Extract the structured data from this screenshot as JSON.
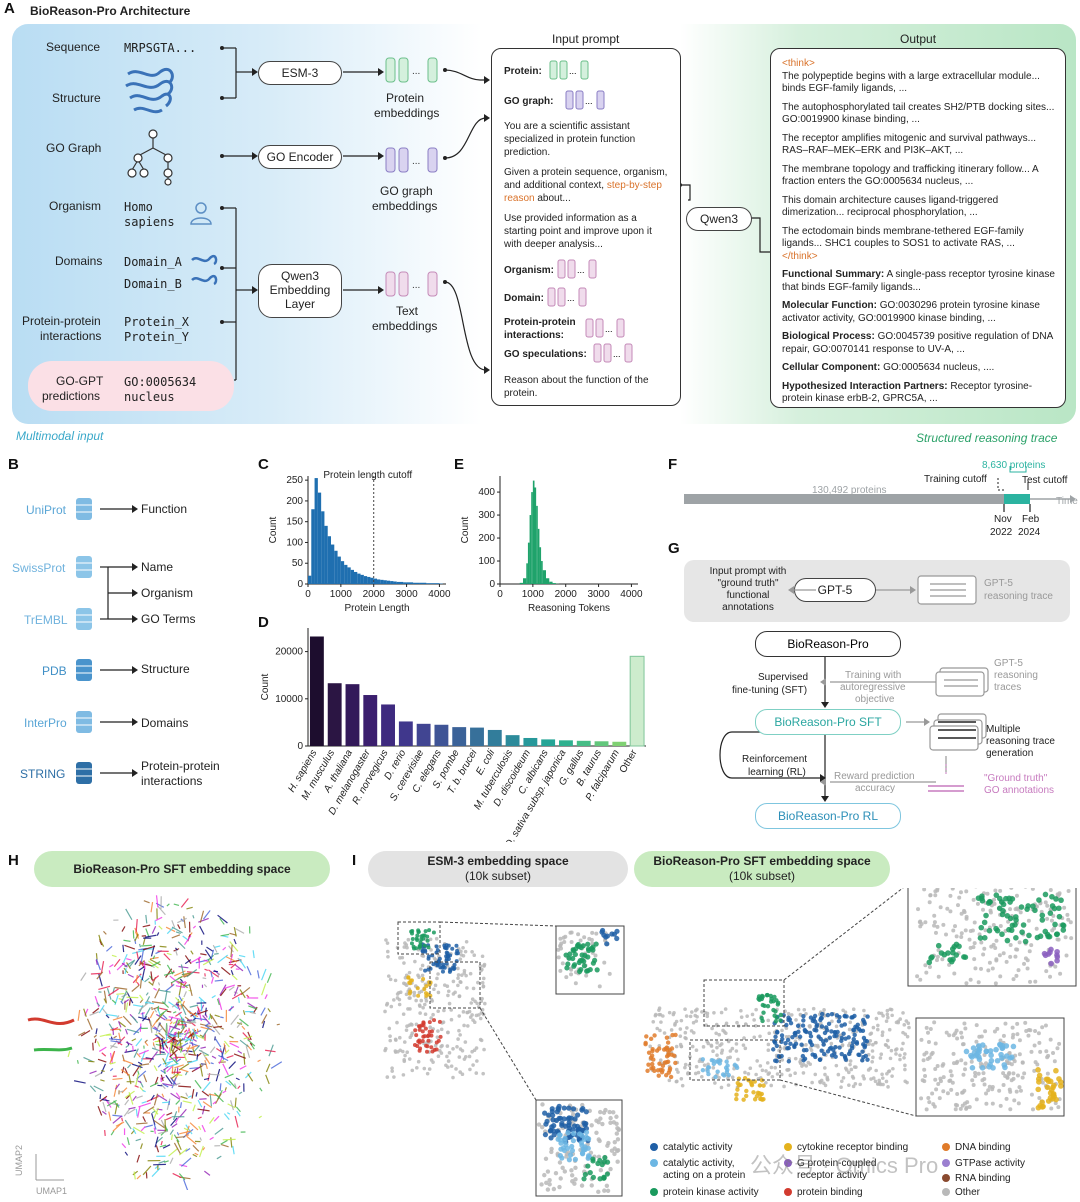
{
  "panelA": {
    "letter": "A",
    "title": "BioReason-Pro Architecture",
    "rows": {
      "sequence": {
        "label": "Sequence",
        "value": "MRPSGTA..."
      },
      "structure": {
        "label": "Structure"
      },
      "go_graph": {
        "label": "GO Graph"
      },
      "organism": {
        "label": "Organism",
        "value1": "Homo",
        "value2": "sapiens"
      },
      "domains": {
        "label": "Domains",
        "value1": "Domain_A",
        "value2": "Domain_B"
      },
      "ppi": {
        "label1": "Protein-protein",
        "label2": "interactions",
        "value1": "Protein_X",
        "value2": "Protein_Y"
      },
      "gogpt": {
        "label1": "GO-GPT",
        "label2": "predictions",
        "value1": "GO:0005634",
        "value2": "nucleus"
      }
    },
    "encoders": {
      "esm3": "ESM-3",
      "go_encoder": "GO Encoder",
      "qwen_embed1": "Qwen3",
      "qwen_embed2": "Embedding",
      "qwen_embed3": "Layer"
    },
    "embeddings": {
      "protein1": "Protein",
      "protein2": "embeddings",
      "go1": "GO graph",
      "go2": "embeddings",
      "text1": "Text",
      "text2": "embeddings"
    },
    "input_prompt": {
      "title": "Input prompt",
      "protein": "Protein:",
      "go_graph": "GO graph:",
      "p1": "You are a scientific assistant specialized in protein function prediction.",
      "p2a": "Given a protein sequence, organism, and additional context,",
      "p2b": "step-by-step reason",
      "p2c": "about...",
      "p3": "Use provided information as a starting point and improve upon it with deeper analysis...",
      "organism": "Organism:",
      "domain": "Domain:",
      "ppi1": "Protein-protein",
      "ppi2": "interactions:",
      "gospec": "GO speculations:",
      "p4": "Reason about the function of the protein."
    },
    "qwen3": "Qwen3",
    "output": {
      "title": "Output",
      "think_open": "<think>",
      "s1": "The polypeptide begins with a large extracellular module... binds EGF-family ligands, ...",
      "s2": "The autophosphorylated tail creates SH2/PTB docking sites... GO:0019900 kinase binding, ...",
      "s3": "The receptor amplifies mitogenic and survival pathways... RAS–RAF–MEK–ERK and PI3K–AKT, ...",
      "s4": "The membrane topology and trafficking itinerary follow... A fraction enters the GO:0005634 nucleus, ...",
      "s5": "This domain architecture causes ligand-triggered dimerization... reciprocal phosphorylation, ...",
      "s6": "The ectodomain binds membrane-tethered EGF-family ligands... SHC1 couples to SOS1 to activate RAS, ...",
      "think_close": "</think>",
      "fs_label": "Functional Summary:",
      "fs": "A single-pass receptor tyrosine kinase that binds EGF-family ligands...",
      "mf_label": "Molecular Function:",
      "mf": "GO:0030296 protein tyrosine kinase activator activity, GO:0019900 kinase binding, ...",
      "bp_label": "Biological Process:",
      "bp": "GO:0045739 positive regulation of DNA repair, GO:0070141 response to UV-A, ...",
      "cc_label": "Cellular Component:",
      "cc": "GO:0005634 nucleus, ....",
      "hip_label": "Hypothesized Interaction Partners:",
      "hip": "Receptor tyrosine-protein kinase erbB-2, GPRC5A, ..."
    },
    "multimodal": "Multimodal input",
    "structured": "Structured reasoning trace"
  },
  "panelB": {
    "letter": "B",
    "sources": [
      {
        "name": "UniProt",
        "color": "#5aa6d6",
        "targets": [
          "Function"
        ]
      },
      {
        "name": "SwissProt",
        "color": "#6fb2dd"
      },
      {
        "name": "TrEMBL",
        "color": "#6fb2dd"
      },
      {
        "name": "PDB",
        "color": "#3f8fc6"
      },
      {
        "name": "InterPro",
        "color": "#5aa6d6"
      },
      {
        "name": "STRING",
        "color": "#2e6fa6"
      }
    ],
    "targets": {
      "function": "Function",
      "name": "Name",
      "organism": "Organism",
      "goterms": "GO Terms",
      "structure": "Structure",
      "domains": "Domains",
      "ppi1": "Protein-protein",
      "ppi2": "interactions"
    }
  },
  "panelC": {
    "letter": "C",
    "chart_data": {
      "type": "bar",
      "title": "Protein length cutoff",
      "xlabel": "Protein Length",
      "ylabel": "Count",
      "xlim": [
        0,
        4200
      ],
      "ylim": [
        0,
        260
      ],
      "xticks": [
        0,
        1000,
        2000,
        3000,
        4000
      ],
      "yticks": [
        0,
        50,
        100,
        150,
        200,
        250
      ],
      "cutoff": 2000,
      "color": "#1f6fb0",
      "x": [
        0,
        100,
        200,
        300,
        400,
        500,
        600,
        700,
        800,
        900,
        1000,
        1100,
        1200,
        1300,
        1400,
        1500,
        1600,
        1700,
        1800,
        1900,
        2000,
        2100,
        2200,
        2300,
        2400,
        2500,
        2600,
        2700,
        2800,
        2900,
        3000,
        3200,
        3400,
        3600,
        3800,
        4000
      ],
      "values": [
        20,
        180,
        255,
        220,
        175,
        140,
        115,
        95,
        80,
        66,
        55,
        46,
        40,
        34,
        29,
        25,
        22,
        19,
        17,
        15,
        13,
        11,
        10,
        9,
        8,
        7,
        6,
        5,
        5,
        4,
        4,
        3,
        3,
        2,
        2,
        1
      ]
    }
  },
  "panelD": {
    "letter": "D",
    "chart_data": {
      "type": "bar",
      "ylabel": "Count",
      "ylim": [
        0,
        25000
      ],
      "yticks": [
        0,
        10000,
        20000
      ],
      "categories": [
        "H. sapiens",
        "M. musculus",
        "A. thaliana",
        "D. melanogaster",
        "R. norvegicus",
        "D. rerio",
        "S. cerevisiae",
        "C. elegans",
        "S. pombe",
        "T. b. brucei",
        "E. coli",
        "M. tuberculosis",
        "D. discoideum",
        "C. albicans",
        "O. sativa subsp. japonica",
        "G. gallus",
        "B. taurus",
        "P. falciparum",
        "Other"
      ],
      "values": [
        23200,
        13300,
        13100,
        10800,
        8800,
        5200,
        4700,
        4500,
        4000,
        3900,
        3400,
        2300,
        1700,
        1400,
        1200,
        1100,
        1000,
        900,
        19000
      ],
      "colors": [
        "#1d0d2e",
        "#2b1543",
        "#33195a",
        "#3b1f6e",
        "#3e2a7f",
        "#40378c",
        "#414592",
        "#3f5496",
        "#3b6298",
        "#37709a",
        "#327d9b",
        "#2c8b9b",
        "#27989a",
        "#25a596",
        "#2fb18f",
        "#46bd86",
        "#62c77c",
        "#80d173",
        "#cdeccd"
      ]
    }
  },
  "panelE": {
    "letter": "E",
    "chart_data": {
      "type": "bar",
      "xlabel": "Reasoning Tokens",
      "ylabel": "Count",
      "xlim": [
        0,
        4200
      ],
      "ylim": [
        0,
        470
      ],
      "xticks": [
        0,
        1000,
        2000,
        3000,
        4000
      ],
      "yticks": [
        0,
        100,
        200,
        300,
        400
      ],
      "color": "#1fa36b",
      "x": [
        600,
        700,
        800,
        850,
        900,
        950,
        1000,
        1050,
        1100,
        1150,
        1200,
        1250,
        1300,
        1400,
        1500,
        1600,
        1700
      ],
      "values": [
        5,
        25,
        90,
        180,
        300,
        400,
        450,
        420,
        340,
        240,
        160,
        100,
        60,
        25,
        10,
        4,
        1
      ]
    }
  },
  "panelF": {
    "letter": "F",
    "proteins_old": "130,492 proteins",
    "proteins_new": "8,630 proteins",
    "training_cutoff": "Training cutoff",
    "test_cutoff": "Test cutoff",
    "time": "Time",
    "d1a": "Nov",
    "d1b": "2022",
    "d2a": "Feb",
    "d2b": "2024"
  },
  "panelG": {
    "letter": "G",
    "input1": "Input prompt with",
    "input2": "\"ground truth\"",
    "input3": "functional",
    "input4": "annotations",
    "gpt5": "GPT-5",
    "gpt5_trace1": "GPT-5",
    "gpt5_trace2": "reasoning trace",
    "bioreason": "BioReason-Pro",
    "sft_label1": "Supervised",
    "sft_label2": "fine-tuning (SFT)",
    "training1": "Training with",
    "training2": "autoregressive",
    "training3": "objective",
    "gpt5_traces1": "GPT-5",
    "gpt5_traces2": "reasoning",
    "gpt5_traces3": "traces",
    "sft_model": "BioReason-Pro SFT",
    "rl1": "Reinforcement",
    "rl2": "learning (RL)",
    "multi1": "Multiple",
    "multi2": "reasoning trace",
    "multi3": "generation",
    "reward1": "Reward prediction",
    "reward2": "accuracy",
    "gt1": "\"Ground truth\"",
    "gt2": "GO annotations",
    "rl_model": "BioReason-Pro RL"
  },
  "panelH": {
    "letter": "H",
    "title": "BioReason-Pro SFT embedding space",
    "umap1": "UMAP1",
    "umap2": "UMAP2"
  },
  "panelI": {
    "letter": "I",
    "esm_title1": "ESM-3 embedding space",
    "esm_title2": "(10k subset)",
    "sft_title1": "BioReason-Pro SFT embedding space",
    "sft_title2": "(10k subset)",
    "legend": [
      {
        "label": "catalytic activity",
        "color": "#1f5fa6"
      },
      {
        "label": "catalytic activity,",
        "label2": "acting on a protein",
        "color": "#6cb6e3"
      },
      {
        "label": "protein kinase activity",
        "color": "#1a9a5e"
      },
      {
        "label": "cytokine receptor binding",
        "color": "#e4b21d"
      },
      {
        "label": "G protein-coupled",
        "label2": "receptor activity",
        "color": "#8b5fbf"
      },
      {
        "label": "protein binding",
        "color": "#d23b2f"
      },
      {
        "label": "DNA binding",
        "color": "#e07b2a"
      },
      {
        "label": "GTPase activity",
        "color": "#9b7fd0"
      },
      {
        "label": "RNA binding",
        "color": "#8a4a2f"
      },
      {
        "label": "Other",
        "color": "#b9b9b9"
      }
    ],
    "watermark": "公众号 · Omics Pro"
  }
}
